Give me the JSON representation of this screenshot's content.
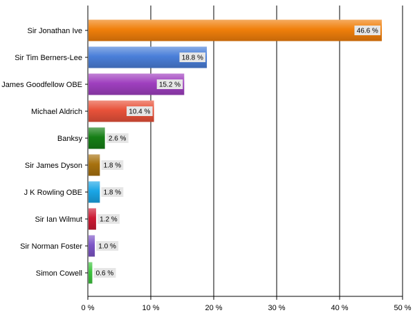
{
  "chart_data": {
    "type": "bar",
    "orientation": "horizontal",
    "title": "",
    "xlabel": "",
    "ylabel": "",
    "xlim": [
      0,
      50
    ],
    "x_ticks": [
      0,
      10,
      20,
      30,
      40,
      50
    ],
    "tick_suffix": " %",
    "grid": true,
    "legend": "none",
    "categories": [
      "Sir Jonathan Ive",
      "Sir Tim Berners-Lee",
      "James Goodfellow OBE",
      "Michael Aldrich",
      "Banksy",
      "Sir James Dyson",
      "J K Rowling OBE",
      "Sir Ian Wilmut",
      "Sir Norman Foster",
      "Simon Cowell"
    ],
    "values": [
      46.6,
      18.8,
      15.2,
      10.4,
      2.6,
      1.8,
      1.8,
      1.2,
      1.0,
      0.6
    ],
    "value_labels": [
      "46.6 %",
      "18.8 %",
      "15.2 %",
      "10.4 %",
      "2.6 %",
      "1.8 %",
      "1.8 %",
      "1.2 %",
      "1.0 %",
      "0.6 %"
    ],
    "colors": [
      "#f07f0b",
      "#4a7fd9",
      "#9f3fbf",
      "#e8523a",
      "#167f16",
      "#a8720f",
      "#1aa6e6",
      "#cc1a33",
      "#7d55c7",
      "#3ec43e"
    ]
  }
}
